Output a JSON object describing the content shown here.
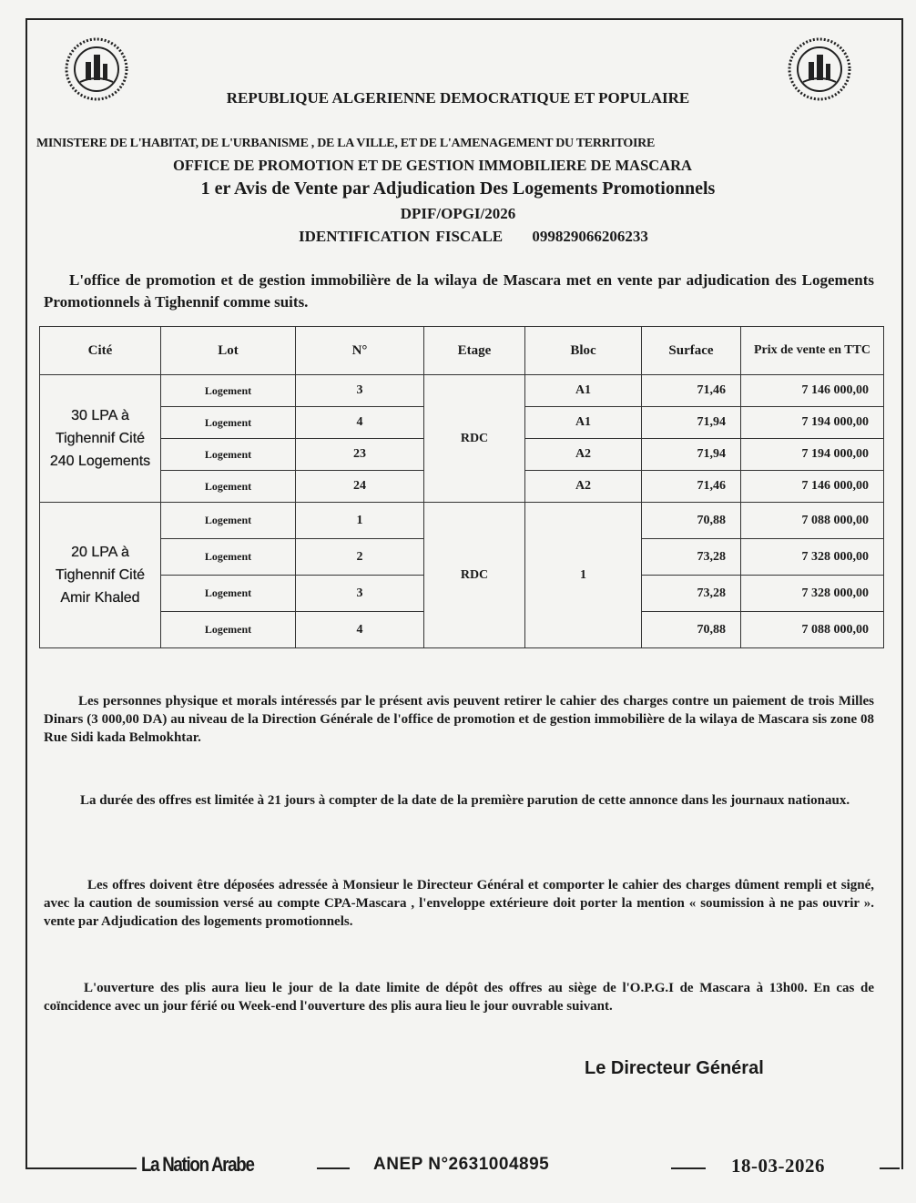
{
  "header": {
    "republic": "REPUBLIQUE ALGERIENNE DEMOCRATIQUE ET POPULAIRE",
    "ministry": "MINISTERE DE L'HABITAT, DE L'URBANISME , DE LA VILLE, ET DE L'AMENAGEMENT DU TERRITOIRE",
    "office": "OFFICE DE PROMOTION ET DE GESTION IMMOBILIERE DE MASCARA",
    "title": "1 er Avis de Vente  par Adjudication Des Logements Promotionnels",
    "reference": "DPIF/OPGI/2026",
    "fiscal_label": "IDENTIFICATION FISCALE",
    "fiscal_number": "099829066206233",
    "logo_icon": "opgi-emblem"
  },
  "intro": "L'office de promotion et de gestion immobilière de la wilaya de Mascara met en vente par adjudication des Logements Promotionnels à  Tighennif comme suits.",
  "table": {
    "headers": [
      "Cité",
      "Lot",
      "N°",
      "Etage",
      "Bloc",
      "Surface",
      "Prix de vente en TTC"
    ],
    "groups": [
      {
        "cite": "30 LPA à Tighennif Cité 240 Logements",
        "etage": "RDC",
        "rows": [
          {
            "lot": "Logement",
            "no": "3",
            "bloc": "A1",
            "surface": "71,46",
            "prix": "7 146 000,00"
          },
          {
            "lot": "Logement",
            "no": "4",
            "bloc": "A1",
            "surface": "71,94",
            "prix": "7 194 000,00"
          },
          {
            "lot": "Logement",
            "no": "23",
            "bloc": "A2",
            "surface": "71,94",
            "prix": "7 194 000,00"
          },
          {
            "lot": "Logement",
            "no": "24",
            "bloc": "A2",
            "surface": "71,46",
            "prix": "7 146 000,00"
          }
        ]
      },
      {
        "cite": "20 LPA à Tighennif Cité Amir Khaled",
        "etage": "RDC",
        "bloc": "1",
        "rows": [
          {
            "lot": "Logement",
            "no": "1",
            "surface": "70,88",
            "prix": "7 088 000,00"
          },
          {
            "lot": "Logement",
            "no": "2",
            "surface": "73,28",
            "prix": "7 328 000,00"
          },
          {
            "lot": "Logement",
            "no": "3",
            "surface": "73,28",
            "prix": "7 328 000,00"
          },
          {
            "lot": "Logement",
            "no": "4",
            "surface": "70,88",
            "prix": "7 088 000,00"
          }
        ]
      }
    ]
  },
  "paragraphs": [
    "Les personnes physique et morals intéressés par le présent avis peuvent retirer le cahier des charges contre un paiement de  trois  Milles Dinars (3 000,00 DA) au niveau de la Direction Générale de l'office de promotion et de gestion immobilière de la wilaya de Mascara sis zone 08 Rue Sidi kada Belmokhtar.",
    "La durée des offres est limitée à 21 jours à compter de la date de la première parution de cette annonce dans les journaux nationaux.",
    "Les offres doivent être déposées  adressée à Monsieur le Directeur Général et comporter le cahier des charges dûment rempli et signé, avec la caution de soumission   versé au compte CPA-Mascara , l'enveloppe extérieure doit porter la mention « soumission à ne pas ouvrir ». vente par Adjudication  des logements promotionnels.",
    "L'ouverture des plis aura  lieu le jour de la date limite de dépôt des offres au siège de  l'O.P.G.I de Mascara à 13h00.  En cas de coïncidence avec un jour férié ou  Week-end l'ouverture des plis aura lieu le jour ouvrable suivant."
  ],
  "signature": "Le  Directeur Général",
  "footer": {
    "newspaper": "La Nation Arabe",
    "anep": "ANEP  N°2631004895",
    "date": "18-03-2026"
  }
}
